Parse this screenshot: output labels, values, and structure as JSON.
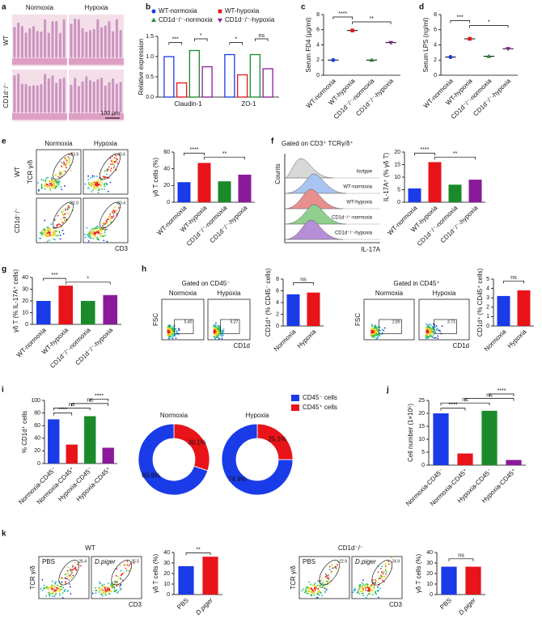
{
  "panel_letters": [
    "a",
    "b",
    "c",
    "d",
    "e",
    "f",
    "g",
    "h",
    "i",
    "j",
    "k"
  ],
  "histology": {
    "columns": [
      "Normoxia",
      "Hypoxia"
    ],
    "rows": [
      "WT",
      "CD1d⁻/⁻"
    ],
    "scale_bar": "100 μm"
  },
  "histogram": {
    "header": "Gated on CD3⁺ TCRγ/δ⁺",
    "y_label": "Counts",
    "x_label": "IL-17A",
    "tracks": [
      "Isotype",
      "WT-normoxia",
      "WT-hypoxia",
      "CD1d⁻/⁻-normoxia",
      "CD1d⁻/⁻-hypoxia"
    ]
  },
  "flow_panels": [
    {
      "columns": [
        "Normoxia",
        "Hypoxia"
      ],
      "rows": [
        "WT",
        "CD1d⁻/⁻"
      ],
      "y_label": "TCR γ/δ",
      "x_label": "CD3",
      "gates": [
        "23.9",
        "40.6",
        "21.0",
        "33.4"
      ]
    },
    {
      "header": "Gated on CD45⁻",
      "columns": [
        "Normoxia",
        "Hypoxia"
      ],
      "y_label": "FSC",
      "x_label": "CD1d",
      "gates": [
        "5.40",
        "6.27"
      ]
    },
    {
      "header": "Gated in CD45⁺",
      "columns": [
        "Normoxia",
        "Hypoxia"
      ],
      "y_label": "FSC",
      "x_label": "CD1d",
      "gates": [
        "2.89",
        "3.73"
      ]
    },
    {
      "header": "WT",
      "columns": [
        "PBS",
        "D.piger"
      ],
      "y_label": "TCR γ/δ",
      "x_label": "CD3",
      "gates": [
        "26.4",
        "35.5"
      ]
    },
    {
      "header": "CD1d⁻/⁻",
      "columns": [
        "PBS",
        "D.piger"
      ],
      "y_label": "TCR γ/δ",
      "x_label": "CD3",
      "gates": [
        "22.9",
        "24.9"
      ]
    }
  ],
  "chart_data": [
    {
      "type": "grouped_bar",
      "ylabel": "Relative expression",
      "categories": [
        "Claudin-1",
        "ZO-1"
      ],
      "series": [
        {
          "name": "WT-normoxia",
          "color": "#1a3be8",
          "values": [
            1.0,
            1.05
          ]
        },
        {
          "name": "WT-hypoxia",
          "color": "#e8141a",
          "values": [
            0.35,
            0.55
          ]
        },
        {
          "name": "CD1d⁻/⁻-normoxia",
          "color": "#1a8a2a",
          "values": [
            1.15,
            1.05
          ]
        },
        {
          "name": "CD1d⁻/⁻-hypoxia",
          "color": "#8a1a9a",
          "values": [
            0.75,
            0.7
          ]
        }
      ],
      "ylim": [
        0,
        1.5
      ],
      "yticks": [
        {
          "value": 0,
          "label": "0.0"
        },
        0.5,
        {
          "value": 1,
          "label": "1.0"
        },
        {
          "value": 1.5,
          "label": "1.5"
        }
      ],
      "significance": [
        "***",
        "*",
        "*",
        "ns"
      ]
    },
    {
      "type": "dot",
      "ylabel": "Serum FD4 (μg/ml)",
      "categories": [
        "WT-normoxia",
        "WT-hypoxia",
        "CD1d⁻/⁻-normoxia",
        "CD1d⁻/⁻-hypoxia"
      ],
      "values": [
        2,
        5.9,
        2,
        4.3
      ],
      "colors": [
        "#1a3be8",
        "#e8141a",
        "#1a8a2a",
        "#8a1a9a"
      ],
      "ylim": [
        0,
        8
      ],
      "yticks": [
        0,
        2,
        4,
        6,
        8
      ],
      "significance": [
        "****",
        "**"
      ]
    },
    {
      "type": "dot",
      "ylabel": "Serum LPS (ng/ml)",
      "categories": [
        "WT-normoxia",
        "WT-hypoxia",
        "CD1d⁻/⁻-normoxia",
        "CD1d⁻/⁻-hypoxia"
      ],
      "values": [
        2.4,
        4.8,
        2.5,
        3.5
      ],
      "colors": [
        "#1a3be8",
        "#e8141a",
        "#1a8a2a",
        "#8a1a9a"
      ],
      "ylim": [
        0,
        8
      ],
      "yticks": [
        0,
        2,
        4,
        6,
        8
      ],
      "significance": [
        "***",
        "*"
      ]
    },
    {
      "type": "bar",
      "ylabel": "γδ T cells (%)",
      "categories": [
        "WT-normoxia",
        "WT-hypoxia",
        "CD1d⁻/⁻-normoxia",
        "CD1d⁻/⁻-hypoxia"
      ],
      "values": [
        24,
        47,
        25,
        33
      ],
      "colors": [
        "#1a3be8",
        "#e8141a",
        "#1a8a2a",
        "#8a1a9a"
      ],
      "ylim": [
        0,
        60
      ],
      "yticks": [
        0,
        20,
        40,
        60
      ],
      "significance": [
        "****",
        "**"
      ]
    },
    {
      "type": "bar",
      "ylabel": "IL-17A⁺ (% γδ T)",
      "categories": [
        "WT-normoxia",
        "WT-hypoxia",
        "CD1d⁻/⁻-normoxia",
        "CD1d⁻/⁻-hypoxia"
      ],
      "values": [
        5.5,
        16,
        7,
        9
      ],
      "colors": [
        "#1a3be8",
        "#e8141a",
        "#1a8a2a",
        "#8a1a9a"
      ],
      "ylim": [
        0,
        20
      ],
      "yticks": [
        0,
        5,
        10,
        15,
        20
      ],
      "significance": [
        "****",
        "**"
      ]
    },
    {
      "type": "bar",
      "ylabel": "γδ T (% IL-17A⁺ cells)",
      "categories": [
        "WT-normoxia",
        "WT-hypoxia",
        "CD1d⁻/⁻-normoxia",
        "CD1d⁻/⁻-hypoxia"
      ],
      "values": [
        20,
        33,
        20,
        25
      ],
      "colors": [
        "#1a3be8",
        "#e8141a",
        "#1a8a2a",
        "#8a1a9a"
      ],
      "ylim": [
        0,
        40
      ],
      "yticks": [
        0,
        10,
        20,
        30,
        40
      ],
      "significance": [
        "***",
        "*"
      ]
    },
    {
      "type": "bar",
      "ylabel": "CD1d⁺ (% CD45⁻ cells)",
      "categories": [
        "Normoxia",
        "Hypoxia"
      ],
      "values": [
        5.4,
        5.7
      ],
      "colors": [
        "#1a3be8",
        "#e8141a"
      ],
      "ylim": [
        0,
        8
      ],
      "yticks": [
        0,
        2,
        4,
        6,
        8
      ],
      "significance": [
        "ns"
      ]
    },
    {
      "type": "bar",
      "ylabel": "CD1d⁺ (% CD45⁺ cells)",
      "categories": [
        "Normoxia",
        "Hypoxia"
      ],
      "values": [
        3.2,
        3.8
      ],
      "colors": [
        "#1a3be8",
        "#e8141a"
      ],
      "ylim": [
        0,
        5
      ],
      "yticks": [
        0,
        1,
        2,
        3,
        4,
        5
      ],
      "significance": [
        "ns"
      ]
    },
    {
      "type": "bar",
      "ylabel": "% CD1d⁺ cells",
      "categories": [
        "Normoxia-CD45⁻",
        "Normoxia-CD45⁺",
        "Hypoxia-CD45⁻",
        "Hypoxia-CD45⁺"
      ],
      "values": [
        70,
        30,
        75,
        25
      ],
      "colors": [
        "#1a3be8",
        "#e8141a",
        "#1a8a2a",
        "#8a1a9a"
      ],
      "ylim": [
        0,
        100
      ],
      "yticks": [
        0,
        20,
        40,
        60,
        80,
        100
      ],
      "significance": [
        "****",
        "ns",
        "ns",
        "****"
      ]
    },
    {
      "type": "pie",
      "categories": [
        "CD45⁻ cells",
        "CD45⁺ cells"
      ],
      "colors": [
        "#1a3be8",
        "#e8141a"
      ],
      "series": [
        {
          "name": "Normoxia",
          "values": [
            69.9,
            30.1
          ],
          "value_labels": [
            "69.9%",
            "30.1%"
          ]
        },
        {
          "name": "Hypoxia",
          "values": [
            74.9,
            25.1
          ],
          "value_labels": [
            "74.9%",
            "25.1%"
          ]
        }
      ]
    },
    {
      "type": "bar",
      "ylabel": "Cell number (1×10⁵)",
      "categories": [
        "Normoxia-CD45⁻",
        "Normoxia-CD45⁺",
        "Hypoxia-CD45⁻",
        "Hypoxia-CD45⁺"
      ],
      "values": [
        20,
        4.5,
        21,
        2
      ],
      "colors": [
        "#1a3be8",
        "#e8141a",
        "#1a8a2a",
        "#8a1a9a"
      ],
      "ylim": [
        0,
        25
      ],
      "yticks": [
        0,
        5,
        10,
        15,
        20,
        25
      ],
      "significance": [
        "****",
        "ns",
        "ns",
        "****"
      ]
    },
    {
      "type": "bar",
      "ylabel": "γδ T cells (%)",
      "categories": [
        "PBS",
        "D.piger"
      ],
      "values": [
        27,
        36
      ],
      "colors": [
        "#1a3be8",
        "#e8141a"
      ],
      "ylim": [
        0,
        40
      ],
      "yticks": [
        0,
        10,
        20,
        30,
        40
      ],
      "significance": [
        "**"
      ]
    },
    {
      "type": "bar",
      "ylabel": "γδ T cells (%)",
      "categories": [
        "PBS",
        "D.piger"
      ],
      "values": [
        26.5,
        26.5
      ],
      "colors": [
        "#1a3be8",
        "#e8141a"
      ],
      "ylim": [
        0,
        40
      ],
      "yticks": [
        0,
        10,
        20,
        30,
        40
      ],
      "significance": [
        "ns"
      ]
    }
  ]
}
